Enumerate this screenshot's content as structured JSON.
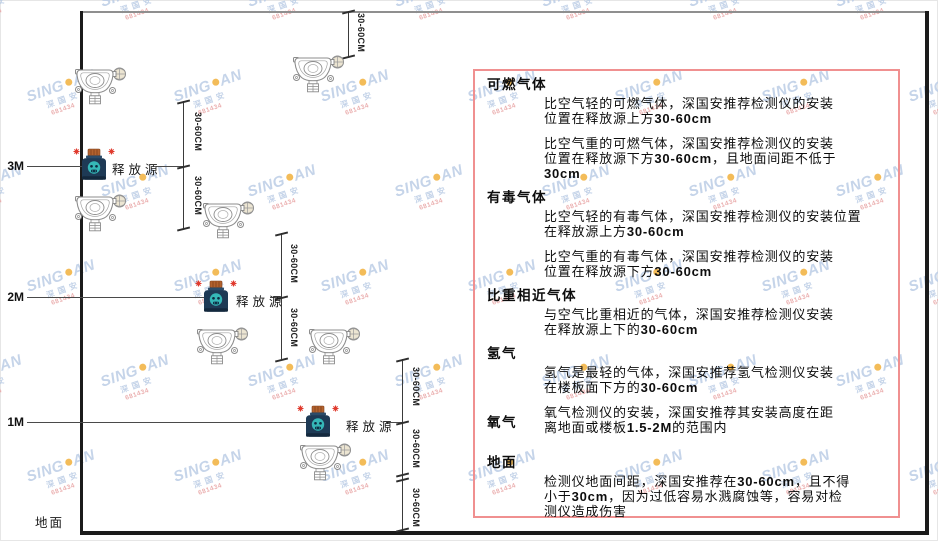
{
  "watermark": {
    "brand_left": "SING",
    "brand_right": "AN",
    "sub": "深国安",
    "code": "681434"
  },
  "diagram": {
    "ground_label": "地面",
    "source_label": "释放源",
    "dim_label": "30-60CM",
    "heights": [
      "3M",
      "2M",
      "1M"
    ]
  },
  "panel": {
    "sections": [
      {
        "heading": "可燃气体",
        "paras": [
          {
            "lines": [
              "比空气轻的可燃气体，深国安推荐检测仪的安装",
              "位置在释放源上方30-60cm"
            ]
          },
          {
            "lines": [
              "比空气重的可燃气体，深国安推荐检测仪的安装",
              "位置在释放源下方30-60cm，且地面间距不低于",
              "30cm"
            ]
          }
        ]
      },
      {
        "heading": "有毒气体",
        "paras": [
          {
            "lines": [
              "比空气轻的有毒气体，深国安推荐检测仪的安装位置",
              "在释放源上方30-60cm"
            ]
          },
          {
            "lines": [
              "比空气重的有毒气体，深国安推荐检测仪的安装",
              "位置在释放源下方30-60cm"
            ]
          }
        ]
      },
      {
        "heading": "比重相近气体",
        "paras": [
          {
            "lines": [
              "与空气比重相近的气体，深国安推荐检测仪安装",
              "在释放源上下的30-60cm"
            ]
          }
        ]
      },
      {
        "heading": "氢气",
        "paras": [
          {
            "lines": [
              "氢气是最轻的气体，深国安推荐氢气检测仪安装",
              "在楼板面下方的30-60cm"
            ]
          }
        ]
      },
      {
        "heading": "氧气",
        "paras": [
          {
            "lines": [
              "氧气检测仪的安装，深国安推荐其安装高度在距",
              "离地面或楼板1.5-2M的范围内"
            ]
          }
        ]
      },
      {
        "heading": "地面",
        "paras": [
          {
            "lines": [
              "检测仪地面间距，深国安推荐在30-60cm，且不得",
              "小于30cm，因为过低容易水溅腐蚀等，容易对检",
              "测仪造成伤害"
            ]
          }
        ]
      }
    ]
  }
}
